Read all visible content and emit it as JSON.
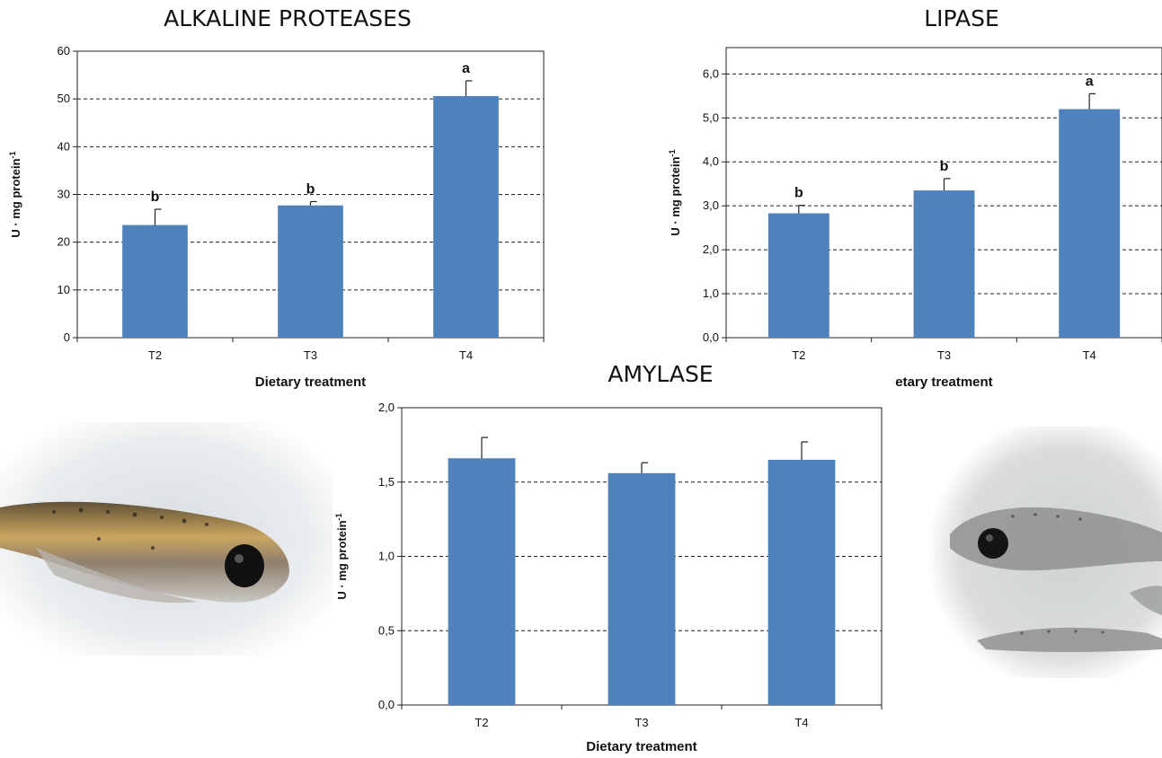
{
  "chart_data": [
    {
      "type": "bar",
      "title": "ALKALINE PROTEASES",
      "categories": [
        "T2",
        "T3",
        "T4"
      ],
      "values": [
        23.6,
        27.7,
        50.6
      ],
      "errors": [
        3.3,
        0.8,
        3.2
      ],
      "letters": [
        "b",
        "b",
        "a"
      ],
      "ylim": [
        0,
        60
      ],
      "yticks": [
        0,
        10,
        20,
        30,
        40,
        50,
        60
      ],
      "ytick_labels": [
        "0",
        "10",
        "20",
        "30",
        "40",
        "50",
        "60"
      ],
      "xlabel": "Dietary treatment",
      "ylabel": "U · mg protein",
      "ylabel_sup": "-1",
      "grid": "dashed-horizontal",
      "color": "#4f81bd"
    },
    {
      "type": "bar",
      "title": "LIPASE",
      "categories": [
        "T2",
        "T3",
        "T4"
      ],
      "values": [
        2.83,
        3.35,
        5.2
      ],
      "errors": [
        0.18,
        0.27,
        0.35
      ],
      "letters": [
        "b",
        "b",
        "a"
      ],
      "ylim": [
        0,
        6.6
      ],
      "yticks": [
        0,
        1,
        2,
        3,
        4,
        5,
        6
      ],
      "ytick_labels": [
        "0,0",
        "1,0",
        "2,0",
        "3,0",
        "4,0",
        "5,0",
        "6,0"
      ],
      "xlabel": "etary treatment",
      "ylabel": "U · mg protein",
      "ylabel_sup": "-1",
      "grid": "dashed-horizontal",
      "color": "#4f81bd"
    },
    {
      "type": "bar",
      "title": "AMYLASE",
      "categories": [
        "T2",
        "T3",
        "T4"
      ],
      "values": [
        1.66,
        1.56,
        1.65
      ],
      "errors": [
        0.14,
        0.07,
        0.12
      ],
      "letters": [
        "",
        "",
        ""
      ],
      "ylim": [
        0,
        2
      ],
      "yticks": [
        0,
        0.5,
        1,
        1.5,
        2
      ],
      "ytick_labels": [
        "0,0",
        "0,5",
        "1,0",
        "1,5",
        "2,0"
      ],
      "xlabel": "Dietary treatment",
      "ylabel": "U · mg protein",
      "ylabel_sup": "-1",
      "grid": "dashed-horizontal",
      "color": "#4f81bd"
    }
  ]
}
